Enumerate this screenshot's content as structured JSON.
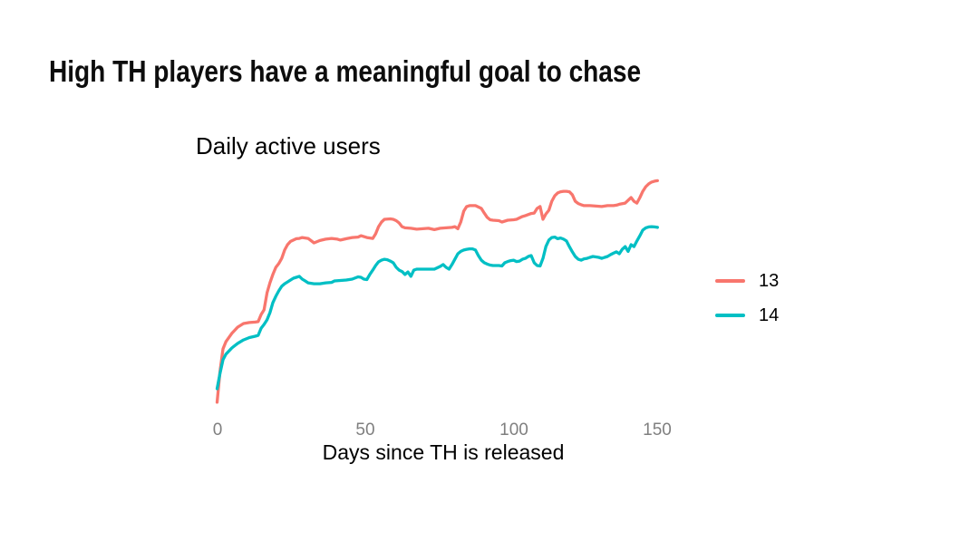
{
  "slide": {
    "title": "High TH players have a meaningful goal to chase"
  },
  "chart": {
    "title": "Daily active users",
    "xlabel": "Days since TH is released",
    "x_tick_labels": [
      "0",
      "50",
      "100",
      "150"
    ]
  },
  "chart_data": {
    "type": "line",
    "title": "Daily active users",
    "xlabel": "Days since TH is released",
    "ylabel": "",
    "xlim": [
      0,
      150
    ],
    "ylim": [
      0,
      100
    ],
    "x_ticks": [
      0,
      50,
      100,
      150
    ],
    "y_axis_shown": false,
    "grid": false,
    "legend_position": "right",
    "series": [
      {
        "name": "13",
        "color": "#F8766D",
        "x": [
          0,
          1,
          2,
          3,
          5,
          7,
          9,
          11,
          13,
          14,
          15,
          16,
          17,
          18,
          19,
          20,
          21,
          22,
          23,
          24,
          25,
          26,
          27,
          28,
          29,
          31,
          33,
          35,
          37,
          39,
          41,
          42,
          44,
          46,
          48,
          49,
          51,
          53,
          54,
          55,
          56,
          57,
          59,
          60,
          61,
          62,
          63,
          64,
          66,
          68,
          70,
          72,
          74,
          76,
          78,
          80,
          81,
          82,
          83,
          84,
          85,
          86,
          88,
          89,
          90,
          91,
          92,
          93,
          94,
          96,
          97,
          98,
          99,
          101,
          102,
          104,
          105,
          107,
          108,
          109,
          110,
          111,
          112,
          113,
          114,
          115,
          116,
          117,
          118,
          119,
          120,
          121,
          122,
          123,
          124,
          125,
          127,
          129,
          131,
          133,
          135,
          136,
          137,
          139,
          140,
          141,
          142,
          143,
          144,
          145,
          146,
          147,
          148,
          149,
          150
        ],
        "y": [
          1.6,
          14.9,
          24.7,
          27.8,
          31.4,
          34.1,
          35.7,
          36.1,
          36.3,
          36.5,
          39.6,
          41.6,
          49.0,
          53.3,
          56.9,
          60.0,
          61.6,
          63.9,
          67.5,
          69.8,
          71.2,
          71.8,
          72.4,
          72.5,
          72.9,
          72.5,
          70.6,
          71.6,
          72.2,
          72.5,
          72.2,
          71.8,
          72.4,
          72.9,
          73.1,
          73.7,
          72.9,
          72.5,
          74.5,
          77.6,
          79.6,
          80.8,
          81.0,
          80.8,
          80.2,
          79.2,
          77.6,
          77.1,
          76.9,
          76.5,
          76.7,
          76.9,
          76.3,
          76.9,
          77.1,
          77.3,
          77.6,
          76.7,
          79.6,
          84.3,
          86.3,
          86.7,
          86.7,
          86.1,
          85.5,
          83.5,
          81.6,
          80.6,
          80.4,
          80.2,
          79.6,
          80.0,
          80.4,
          80.6,
          80.8,
          82.0,
          82.4,
          83.3,
          83.5,
          85.5,
          86.3,
          80.8,
          83.1,
          84.7,
          88.6,
          91.0,
          92.2,
          92.7,
          92.9,
          92.9,
          92.7,
          91.4,
          88.6,
          87.6,
          87.1,
          86.7,
          86.7,
          86.5,
          86.3,
          86.7,
          86.7,
          86.9,
          87.3,
          87.8,
          89.0,
          90.2,
          88.6,
          87.8,
          90.2,
          92.9,
          94.9,
          96.1,
          96.9,
          97.3,
          97.5
        ]
      },
      {
        "name": "14",
        "color": "#00BFC4",
        "x": [
          0,
          1,
          2,
          3,
          5,
          7,
          9,
          11,
          13,
          14,
          15,
          16,
          17,
          18,
          19,
          20,
          21,
          22,
          23,
          24,
          25,
          26,
          27,
          28,
          29,
          30,
          31,
          33,
          35,
          37,
          39,
          40,
          42,
          44,
          46,
          48,
          49,
          50,
          51,
          52,
          53,
          54,
          55,
          56,
          57,
          58,
          59,
          60,
          61,
          62,
          63,
          64,
          65,
          66,
          67,
          68,
          70,
          72,
          74,
          75,
          76,
          77,
          78,
          79,
          80,
          81,
          82,
          83,
          84,
          85,
          86,
          87,
          88,
          89,
          90,
          91,
          92,
          93,
          94,
          96,
          97,
          98,
          99,
          100,
          101,
          102,
          103,
          104,
          105,
          106,
          107,
          108,
          109,
          110,
          111,
          112,
          113,
          114,
          115,
          116,
          117,
          118,
          119,
          120,
          121,
          122,
          123,
          124,
          125,
          126,
          127,
          128,
          129,
          130,
          131,
          132,
          133,
          134,
          135,
          136,
          137,
          138,
          139,
          140,
          141,
          142,
          143,
          144,
          145,
          146,
          147,
          148,
          149,
          150
        ],
        "y": [
          7.5,
          14.1,
          20.0,
          22.4,
          25.1,
          27.1,
          28.6,
          29.6,
          30.2,
          30.6,
          33.7,
          35.3,
          37.3,
          40.4,
          44.7,
          47.5,
          49.8,
          51.8,
          52.9,
          53.7,
          54.5,
          55.3,
          55.7,
          56.1,
          54.9,
          54.1,
          53.3,
          52.9,
          52.9,
          53.3,
          53.5,
          54.1,
          54.3,
          54.5,
          54.9,
          55.9,
          55.7,
          54.9,
          54.7,
          56.9,
          58.8,
          60.8,
          62.4,
          63.1,
          63.5,
          63.3,
          62.7,
          62.0,
          60.0,
          58.8,
          58.2,
          56.9,
          58.0,
          56.1,
          58.8,
          59.2,
          59.2,
          59.2,
          59.2,
          59.8,
          60.4,
          61.2,
          60.0,
          59.2,
          61.2,
          63.5,
          65.9,
          66.9,
          67.5,
          67.8,
          68.0,
          68.0,
          67.5,
          65.1,
          63.1,
          62.0,
          61.4,
          61.0,
          60.8,
          60.8,
          60.6,
          62.0,
          62.5,
          62.9,
          63.1,
          62.5,
          62.7,
          63.5,
          63.9,
          64.7,
          65.1,
          62.0,
          60.8,
          60.6,
          63.9,
          69.0,
          71.8,
          72.9,
          73.1,
          72.4,
          72.7,
          72.2,
          71.4,
          69.0,
          66.7,
          64.7,
          63.5,
          63.1,
          63.7,
          63.9,
          64.3,
          64.7,
          64.5,
          64.3,
          63.9,
          64.3,
          64.7,
          65.5,
          66.1,
          66.7,
          65.9,
          67.8,
          69.0,
          66.9,
          69.8,
          69.0,
          71.4,
          73.7,
          76.1,
          77.1,
          77.5,
          77.6,
          77.5,
          77.3
        ]
      }
    ]
  }
}
